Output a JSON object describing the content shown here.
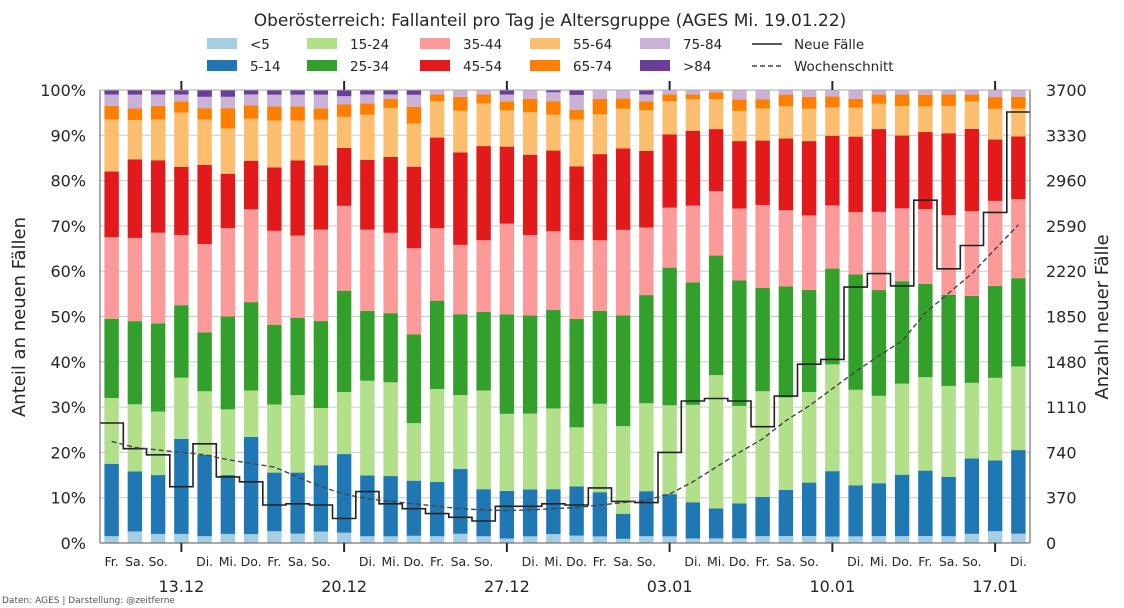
{
  "chart_data": {
    "type": "bar",
    "stacked": true,
    "title": "Oberösterreich: Fallanteil pro Tag je Altersgruppe (AGES Mi. 19.01.22)",
    "ylabel_left": "Anteil an neuen Fällen",
    "ylabel_right": "Anzahl neuer Fälle",
    "credit": "Daten: AGES | Darstellung: @zeitferne",
    "yticks_left": [
      "0%",
      "10%",
      "20%",
      "30%",
      "40%",
      "50%",
      "60%",
      "70%",
      "80%",
      "90%",
      "100%"
    ],
    "yticks_right": [
      "0",
      "370",
      "740",
      "1110",
      "1480",
      "1850",
      "2220",
      "2590",
      "2960",
      "3330",
      "3700"
    ],
    "ylim_left": [
      0,
      100
    ],
    "ylim_right": [
      0,
      3700
    ],
    "grid": true,
    "legend_position": "top",
    "day_labels": [
      "Fr.",
      "Sa.",
      "So.",
      "",
      "Di.",
      "Mi.",
      "Do.",
      "Fr.",
      "Sa.",
      "So.",
      "",
      "Di.",
      "Mi.",
      "Do.",
      "Fr.",
      "Sa.",
      "So.",
      "",
      "Di.",
      "Mi.",
      "Do.",
      "Fr.",
      "Sa.",
      "So.",
      "",
      "Di.",
      "Mi.",
      "Do.",
      "Fr.",
      "Sa.",
      "So.",
      "",
      "Di.",
      "Mi.",
      "Do.",
      "Fr.",
      "Sa.",
      "So.",
      "",
      "Di."
    ],
    "date_labels": [
      {
        "index": 3,
        "label": "13.12"
      },
      {
        "index": 10,
        "label": "20.12"
      },
      {
        "index": 17,
        "label": "27.12"
      },
      {
        "index": 24,
        "label": "03.01"
      },
      {
        "index": 31,
        "label": "10.01"
      },
      {
        "index": 38,
        "label": "17.01"
      }
    ],
    "series": [
      {
        "name": "<5",
        "color": "#a6cee3",
        "values": [
          1.5,
          2.5,
          2,
          2,
          1.5,
          2,
          2,
          2.5,
          2,
          2.5,
          2.5,
          1.5,
          1.5,
          1.5,
          1.5,
          2,
          1.5,
          1,
          1.5,
          2,
          1.5,
          1.5,
          1,
          1.5,
          1.5,
          1,
          1,
          1,
          1.5,
          1.5,
          1.5,
          1.5,
          1.5,
          1.5,
          1.5,
          1.5,
          1.5,
          2,
          2.5,
          2
        ]
      },
      {
        "name": "5-14",
        "color": "#1f78b4",
        "values": [
          16,
          13,
          13,
          21,
          18,
          13,
          22,
          12.5,
          13,
          14.5,
          19,
          13.5,
          13.5,
          11.5,
          12,
          14,
          10.5,
          10.5,
          10.5,
          10,
          10,
          10,
          6,
          10,
          9.5,
          8,
          6.5,
          7.5,
          8.5,
          10,
          11.5,
          15,
          11.5,
          11.5,
          13.5,
          14,
          13,
          16.5,
          15,
          18
        ]
      },
      {
        "name": "15-24",
        "color": "#b2df8a",
        "values": [
          14.5,
          14.5,
          14,
          13.5,
          14,
          14.5,
          10.5,
          14.5,
          16.5,
          12.5,
          15,
          21,
          21,
          12,
          20.5,
          16,
          22,
          17,
          17,
          18,
          12,
          20,
          21,
          19.5,
          20,
          21.5,
          29,
          21,
          23,
          20,
          19.5,
          24.5,
          21.5,
          19,
          20,
          20,
          20,
          16.5,
          17.5,
          18
        ]
      },
      {
        "name": "25-34",
        "color": "#33a02c",
        "values": [
          17.5,
          18,
          19.5,
          16,
          13,
          20.5,
          20,
          17,
          16.5,
          19,
          24.5,
          15.5,
          15.5,
          18.5,
          19.5,
          17.5,
          17.5,
          22,
          22,
          22,
          22,
          21,
          26.5,
          24,
          31,
          27,
          26,
          27,
          22.5,
          24,
          22,
          22,
          26,
          23,
          22.5,
          20,
          20,
          19,
          19.5,
          19
        ]
      },
      {
        "name": "35-44",
        "color": "#fb9a99",
        "values": [
          18,
          18,
          20,
          15.5,
          19.5,
          19.5,
          21,
          20,
          17.5,
          20,
          20.5,
          18,
          18,
          18,
          16,
          15,
          16,
          20,
          18,
          17.5,
          16,
          16,
          20.5,
          15,
          13.5,
          17,
          14,
          15.5,
          18,
          16.5,
          16,
          14.5,
          14,
          17,
          16,
          16,
          17.5,
          18.5,
          18,
          17
        ]
      },
      {
        "name": "45-54",
        "color": "#e31a1c",
        "values": [
          14.5,
          17,
          16,
          15,
          17.5,
          12,
          11,
          13.5,
          16,
          14,
          14,
          15.5,
          17,
          17,
          20,
          20,
          21,
          17,
          18,
          18,
          15,
          19.5,
          19.5,
          17,
          16.5,
          16.5,
          13.5,
          14.5,
          14,
          15.5,
          16,
          16,
          17,
          18,
          16,
          16.5,
          18,
          18,
          13,
          13.5
        ]
      },
      {
        "name": "55-64",
        "color": "#fdbf6f",
        "values": [
          11.5,
          8.5,
          9,
          12,
          10,
          10,
          9.5,
          10,
          8.5,
          10,
          7.5,
          10,
          11,
          9,
          8,
          9,
          9.5,
          8,
          9.5,
          8,
          9.5,
          9,
          9.5,
          9,
          7.5,
          7,
          6.5,
          6.5,
          7,
          7,
          7,
          6.5,
          6.5,
          5.5,
          6.5,
          5.5,
          6,
          6,
          6.5,
          6
        ]
      },
      {
        "name": "65-74",
        "color": "#ff7f00",
        "values": [
          3,
          2.5,
          3,
          2.5,
          2.5,
          4.5,
          3,
          3,
          3,
          2.5,
          3,
          2.5,
          2,
          3.5,
          1.5,
          3,
          2,
          2,
          3,
          3,
          2,
          3.5,
          2.5,
          2,
          1.5,
          1,
          1.5,
          2.5,
          2,
          2.5,
          2.5,
          2.5,
          2,
          2,
          2.5,
          2.5,
          2.5,
          1.5,
          2.5,
          2.5
        ]
      },
      {
        "name": "75-84",
        "color": "#cab2d6",
        "values": [
          2.5,
          3,
          2.5,
          1.5,
          2.5,
          2.5,
          2.5,
          2.5,
          2.5,
          3,
          2,
          2,
          1,
          2.5,
          1,
          1.5,
          1,
          1.5,
          2,
          2,
          3,
          2,
          2,
          1.5,
          1,
          1,
          0.5,
          2,
          2,
          1,
          1.5,
          1.5,
          2,
          1,
          1,
          1,
          1,
          1,
          1.5,
          1.5
        ]
      },
      {
        "name": ">84",
        "color": "#6a3d9a",
        "values": [
          1,
          1,
          1,
          1,
          1.5,
          1.5,
          1,
          1,
          1,
          1,
          1.5,
          1,
          1,
          1,
          0,
          0,
          0,
          1,
          0,
          0.5,
          1,
          0,
          0,
          1,
          0,
          0,
          0,
          0,
          0,
          0,
          0,
          0,
          0,
          0,
          0,
          0,
          0,
          0,
          0,
          0
        ]
      }
    ],
    "line_series": [
      {
        "name": "Neue Fälle",
        "style": "step",
        "color": "#222222",
        "values": [
          980,
          770,
          720,
          460,
          810,
          540,
          500,
          310,
          320,
          310,
          200,
          420,
          320,
          280,
          240,
          210,
          180,
          300,
          300,
          320,
          310,
          450,
          340,
          330,
          740,
          1160,
          1180,
          1160,
          950,
          1200,
          1460,
          1500,
          2090,
          2200,
          2100,
          2800,
          2240,
          2430,
          2700,
          3520
        ]
      },
      {
        "name": "Wochenschnitt",
        "style": "dashed",
        "color": "#444444",
        "values": [
          830,
          780,
          760,
          740,
          720,
          680,
          650,
          620,
          540,
          460,
          400,
          360,
          340,
          320,
          300,
          280,
          270,
          265,
          270,
          280,
          290,
          310,
          330,
          350,
          400,
          500,
          620,
          740,
          850,
          1000,
          1120,
          1260,
          1400,
          1530,
          1650,
          1880,
          2040,
          2200,
          2400,
          2600
        ]
      }
    ]
  }
}
